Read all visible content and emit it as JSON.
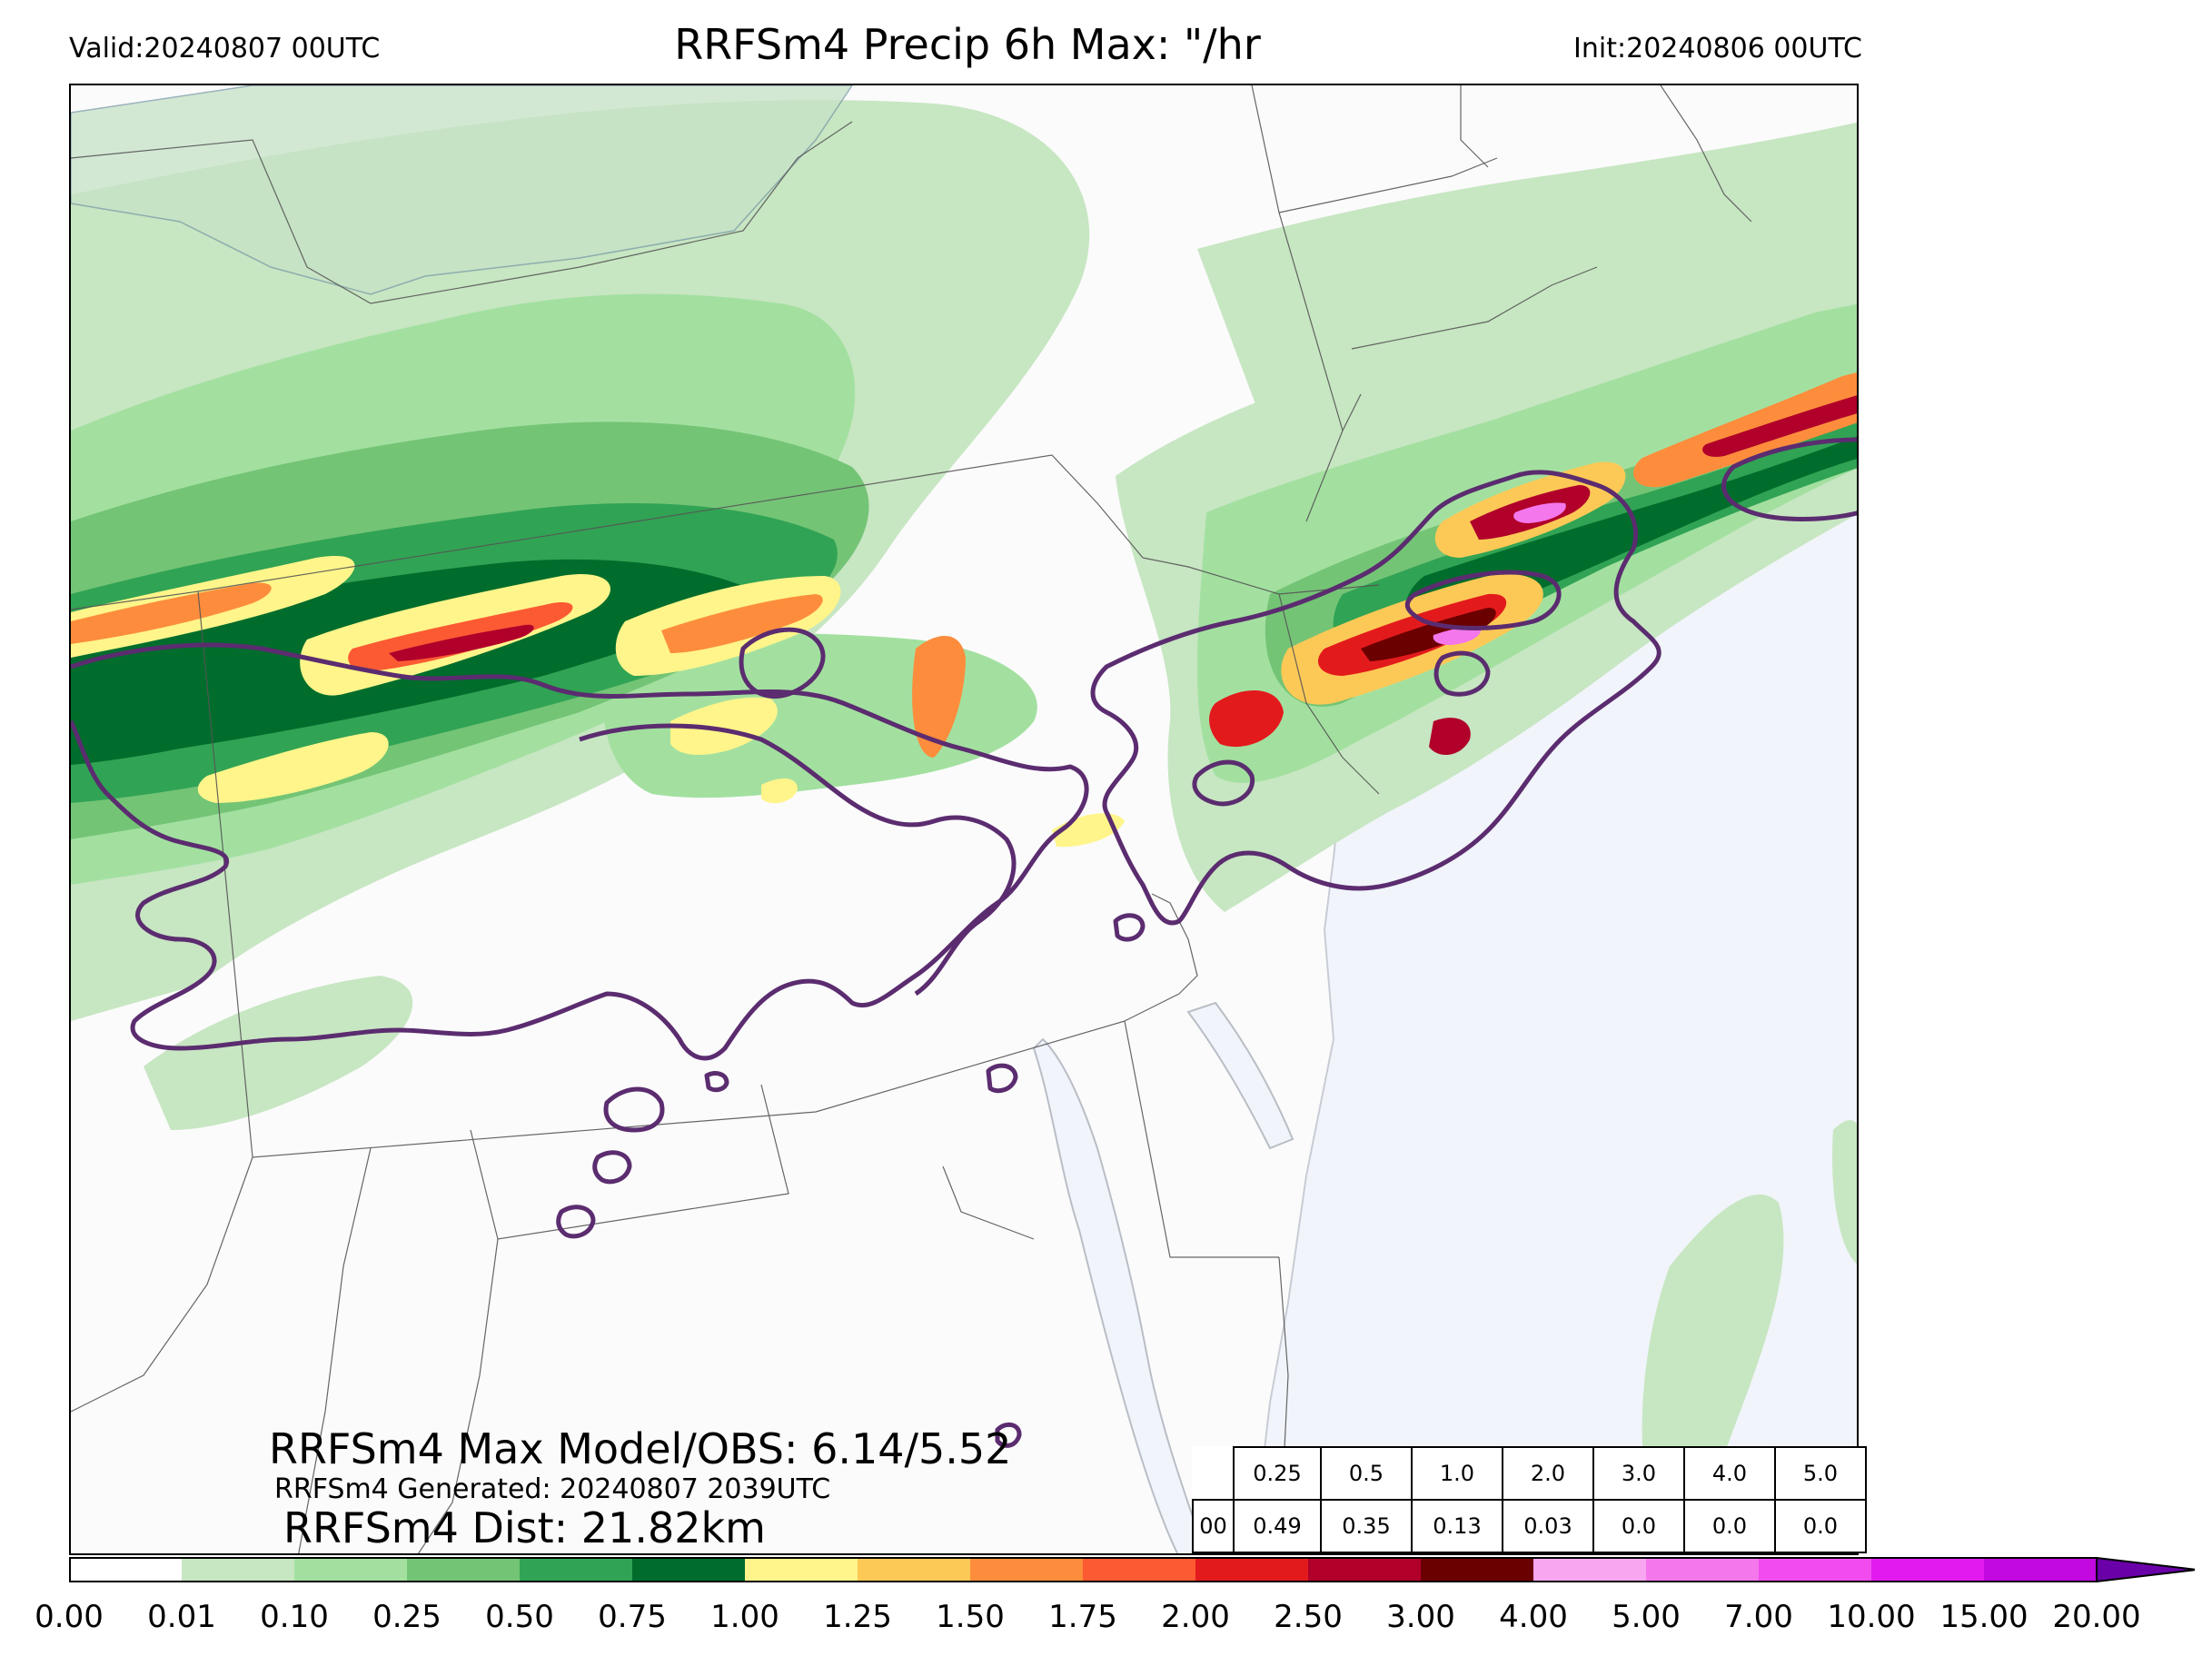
{
  "header": {
    "valid": "Valid:20240807 00UTC",
    "title": "RRFSm4 Precip 6h Max: \"/hr",
    "init": "Init:20240806 00UTC"
  },
  "stats": {
    "max_line": "RRFSm4 Max Model/OBS: 6.14/5.52",
    "generated_line": "RRFSm4 Generated: 20240807 2039UTC",
    "dist_line": "RRFSm4 Dist: 21.82km"
  },
  "threshold_table": {
    "row_label": "00",
    "thresholds": [
      "0.25",
      "0.5",
      "1.0",
      "2.0",
      "3.0",
      "4.0",
      "5.0"
    ],
    "values": [
      "0.49",
      "0.35",
      "0.13",
      "0.03",
      "0.0",
      "0.0",
      "0.0"
    ]
  },
  "colorbar": {
    "ticks": [
      "0.00",
      "0.01",
      "0.10",
      "0.25",
      "0.50",
      "0.75",
      "1.00",
      "1.25",
      "1.50",
      "1.75",
      "2.00",
      "2.50",
      "3.00",
      "4.00",
      "5.00",
      "7.00",
      "10.00",
      "15.00",
      "20.00"
    ],
    "colors": [
      "#ffffff",
      "#c7e6c2",
      "#a3e0a0",
      "#74c476",
      "#31a354",
      "#006d2c",
      "#fff58a",
      "#fdc956",
      "#fd8d3c",
      "#fc5a33",
      "#e31a1c",
      "#b1002a",
      "#6b0000",
      "#f8a6f0",
      "#f477ec",
      "#f24bf0",
      "#e31aef",
      "#c109e0",
      "#8b00c9"
    ],
    "extend_color": "#6a00a8"
  },
  "map_colors": {
    "land": "#fbfbfb",
    "ocean": "#f1f4fa",
    "lake": "#c6e2c6",
    "obs_contour": "#5b2c6f",
    "borders": "#555555"
  }
}
